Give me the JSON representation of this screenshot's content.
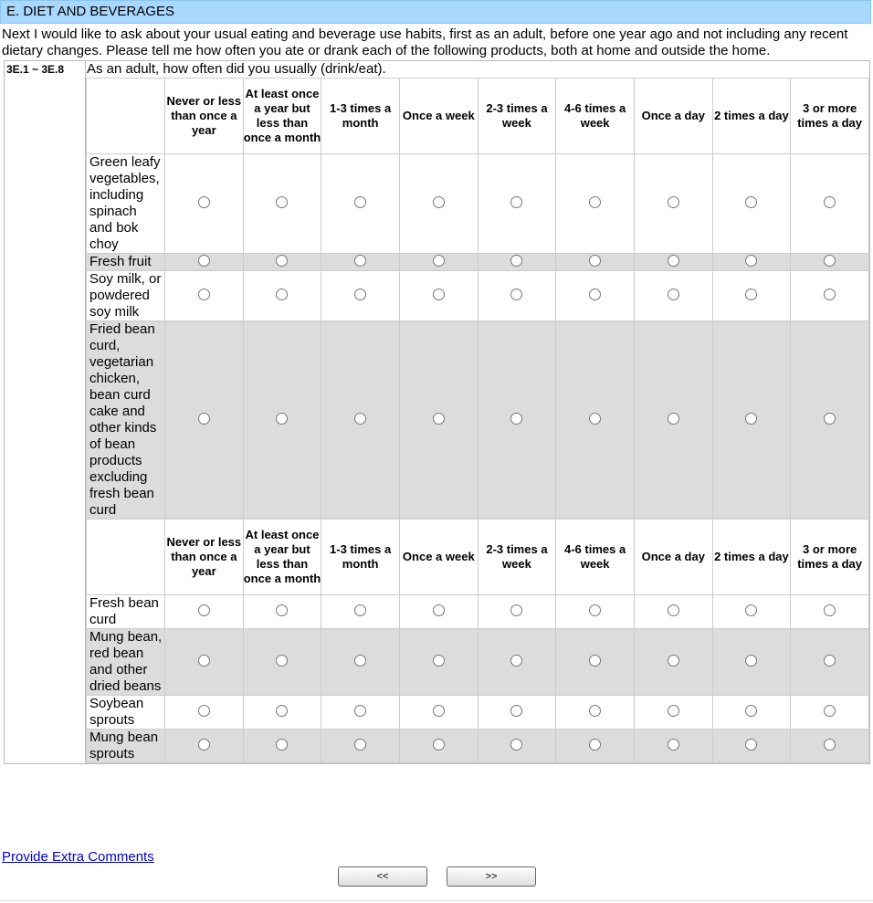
{
  "section_title": "E. DIET AND BEVERAGES",
  "intro": "Next I would like to ask about your usual eating and beverage use habits, first as an adult, before one year ago and not including any recent dietary changes. Please tell me how often you ate or drank each of the following products, both at home and outside the home.",
  "question_id": "3E.1 ~ 3E.8",
  "question": "As an adult, how often did you usually (drink/eat).",
  "columns": [
    "Never or less than once a year",
    "At least once a year but less than once a month",
    "1-3 times a month",
    "Once a week",
    "2-3 times a week",
    "4-6 times a week",
    "Once a day",
    "2 times a day",
    "3 or more times a day"
  ],
  "rows": [
    "Green leafy vegetables, including spinach and bok choy",
    "Fresh fruit",
    "Soy milk, or powdered soy milk",
    "Fried bean curd, vegetarian chicken, bean curd cake and other kinds of bean products excluding fresh bean curd",
    "Fresh bean curd",
    "Mung bean, red bean and other dried beans",
    "Soybean sprouts",
    "Mung bean sprouts"
  ],
  "link": "Provide Extra Comments",
  "buttons": [
    "<<",
    ">>"
  ]
}
